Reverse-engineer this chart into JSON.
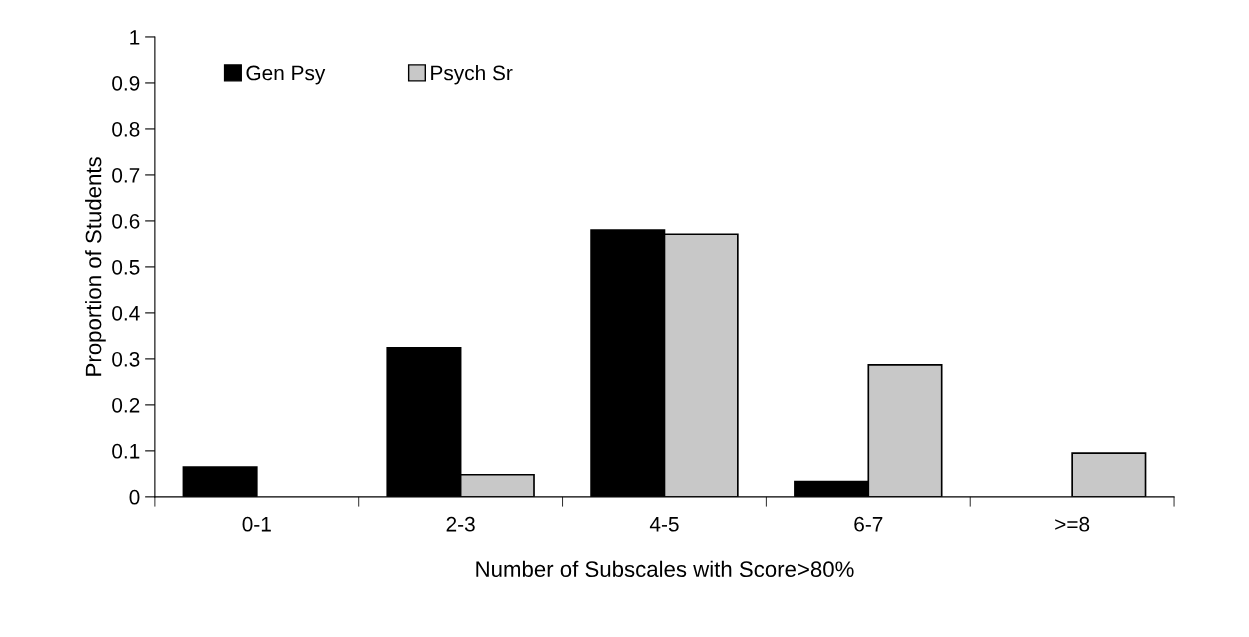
{
  "chart_data": {
    "type": "bar",
    "xlabel": "Number of Subscales with Score>80%",
    "ylabel": "Proportion of Students",
    "categories": [
      "0-1",
      "2-3",
      "4-5",
      "6-7",
      ">=8"
    ],
    "series": [
      {
        "name": "Gen Psy",
        "color": "#000000",
        "values": [
          0.065,
          0.324,
          0.58,
          0.033,
          0
        ]
      },
      {
        "name": "Psych Sr",
        "color": "#c8c8c8",
        "values": [
          0,
          0.048,
          0.571,
          0.287,
          0.095
        ]
      }
    ],
    "ylim": [
      0,
      1
    ],
    "yticks": [
      0,
      0.1,
      0.2,
      0.3,
      0.4,
      0.5,
      0.6,
      0.7,
      0.8,
      0.9,
      1
    ],
    "grid": false,
    "legend": "top left"
  }
}
